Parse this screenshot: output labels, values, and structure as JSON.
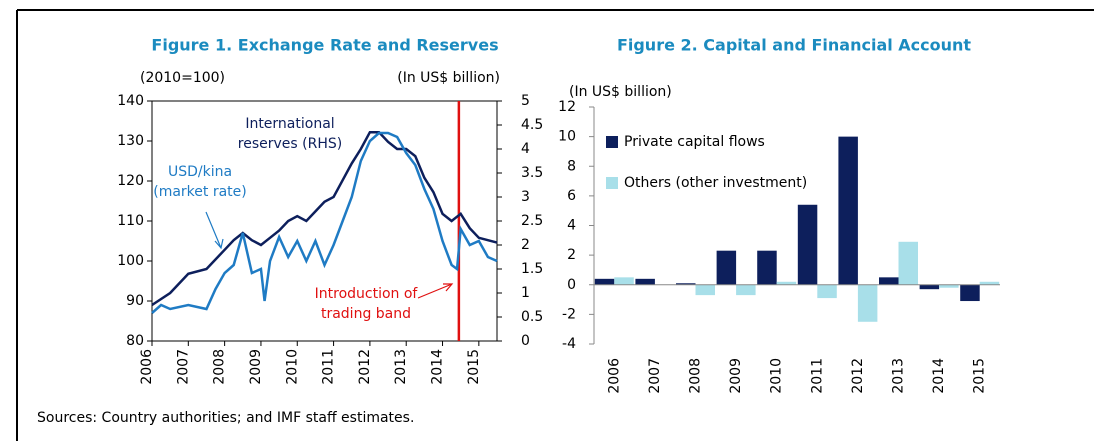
{
  "chart_data": [
    {
      "type": "line",
      "title": "Figure 1. Exchange Rate and Reserves",
      "ylabel": "(2010=100)",
      "y2label": "(In US$ billion)",
      "xlim": [
        2006,
        2015.5
      ],
      "xticks": [
        2006,
        2007,
        2008,
        2009,
        2010,
        2011,
        2012,
        2013,
        2014,
        2015
      ],
      "ylim": [
        80,
        140
      ],
      "yticks": [
        80,
        90,
        100,
        110,
        120,
        130,
        140
      ],
      "y2lim": [
        0,
        5
      ],
      "y2ticks": [
        0,
        0.5,
        1,
        1.5,
        2,
        2.5,
        3,
        3.5,
        4,
        4.5,
        5
      ],
      "series": [
        {
          "name": "International reserves (RHS)",
          "color": "#0d1f5c",
          "axis": "y2",
          "x": [
            2006,
            2006.5,
            2007,
            2007.5,
            2008,
            2008.25,
            2008.5,
            2008.75,
            2009,
            2009.25,
            2009.5,
            2009.75,
            2010,
            2010.25,
            2010.5,
            2010.75,
            2011,
            2011.25,
            2011.5,
            2011.75,
            2012,
            2012.25,
            2012.5,
            2012.75,
            2013,
            2013.25,
            2013.5,
            2013.75,
            2014,
            2014.25,
            2014.5,
            2014.75,
            2015,
            2015.25,
            2015.5
          ],
          "values": [
            0.75,
            1.0,
            1.4,
            1.5,
            1.9,
            2.1,
            2.25,
            2.1,
            2.0,
            2.15,
            2.3,
            2.5,
            2.6,
            2.5,
            2.7,
            2.9,
            3.0,
            3.35,
            3.7,
            4.0,
            4.35,
            4.35,
            4.15,
            4.0,
            4.0,
            3.85,
            3.4,
            3.1,
            2.65,
            2.5,
            2.65,
            2.35,
            2.15,
            2.1,
            2.05
          ]
        },
        {
          "name": "USD/kina (market rate)",
          "color": "#1f7bc4",
          "axis": "y",
          "x": [
            2006,
            2006.25,
            2006.5,
            2007,
            2007.5,
            2007.75,
            2008,
            2008.25,
            2008.5,
            2008.75,
            2009,
            2009.1,
            2009.25,
            2009.5,
            2009.75,
            2010,
            2010.25,
            2010.5,
            2010.75,
            2011,
            2011.25,
            2011.5,
            2011.75,
            2012,
            2012.25,
            2012.5,
            2012.75,
            2013,
            2013.25,
            2013.5,
            2013.75,
            2014,
            2014.25,
            2014.4,
            2014.5,
            2014.75,
            2015,
            2015.25,
            2015.5
          ],
          "values": [
            87,
            89,
            88,
            89,
            88,
            93,
            97,
            99,
            107,
            97,
            98,
            90,
            100,
            106,
            101,
            105,
            100,
            105,
            99,
            104,
            110,
            116,
            125,
            130,
            132,
            132,
            131,
            127,
            124,
            118,
            113,
            105,
            99,
            98,
            108,
            104,
            105,
            101,
            100
          ]
        }
      ],
      "vline": {
        "x": 2014.45,
        "color": "#e01010",
        "label": "Introduction of trading band"
      }
    },
    {
      "type": "bar",
      "title": "Figure 2. Capital and Financial Account",
      "ylabel": "(In US$ billion)",
      "categories": [
        "2006",
        "2007",
        "2008",
        "2009",
        "2010",
        "2011",
        "2012",
        "2013",
        "2014",
        "2015"
      ],
      "ylim": [
        -4,
        12
      ],
      "yticks": [
        -4,
        -2,
        0,
        2,
        4,
        6,
        8,
        10,
        12
      ],
      "legend": "upper left",
      "series": [
        {
          "name": "Private capital flows",
          "color": "#0d1f5c",
          "values": [
            0.4,
            0.4,
            0.1,
            2.3,
            2.3,
            5.4,
            10,
            0.5,
            -0.3,
            -1.1
          ]
        },
        {
          "name": "Others (other investment)",
          "color": "#a8dfe9",
          "values": [
            0.5,
            0,
            -0.7,
            -0.7,
            0.2,
            -0.9,
            -2.5,
            2.9,
            -0.2,
            0.2
          ]
        }
      ]
    }
  ],
  "source": "Sources: Country authorities; and IMF staff estimates."
}
